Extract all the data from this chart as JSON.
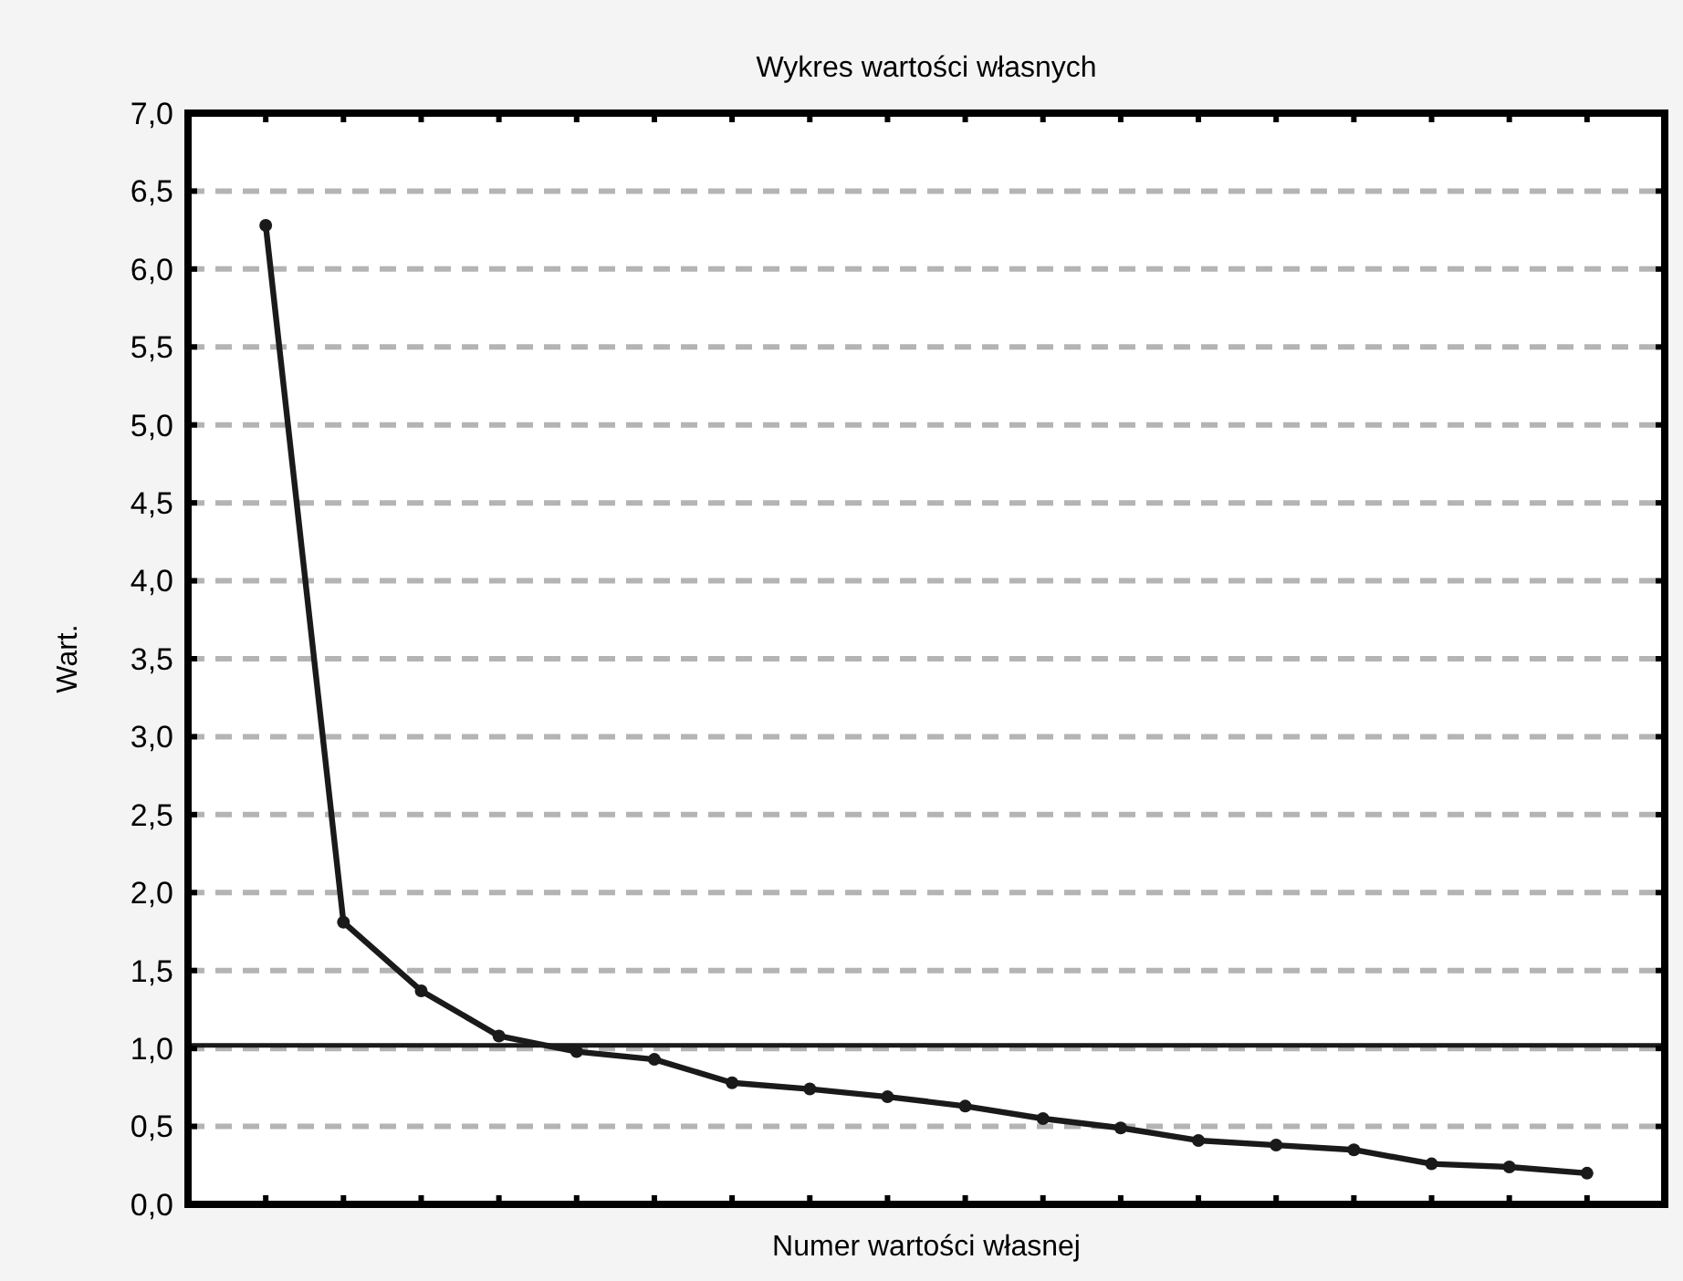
{
  "chart_data": {
    "type": "line",
    "title": "Wykres wartości własnych",
    "xlabel": "Numer wartości własnej",
    "ylabel": "Wart.",
    "categories": [
      null,
      null,
      null,
      null,
      null,
      null,
      null,
      null,
      null,
      null,
      null,
      null,
      null,
      null,
      null,
      null,
      null,
      null
    ],
    "series": [
      {
        "color": "#1a1a1a",
        "values": [
          6.28,
          1.81,
          1.37,
          1.08,
          0.98,
          0.93,
          0.78,
          0.74,
          0.69,
          0.63,
          0.55,
          0.49,
          0.41,
          0.38,
          0.35,
          0.26,
          0.24,
          0.2
        ]
      }
    ],
    "ylim": [
      0,
      7
    ],
    "yticks": [
      {
        "value": 0,
        "label": "0,0"
      },
      {
        "value": 0.5,
        "label": "0,5"
      },
      {
        "value": 1,
        "label": "1,0"
      },
      {
        "value": 1.5,
        "label": "1,5"
      },
      {
        "value": 2,
        "label": "2,0"
      },
      {
        "value": 2.5,
        "label": "2,5"
      },
      {
        "value": 3,
        "label": "3,0"
      },
      {
        "value": 3.5,
        "label": "3,5"
      },
      {
        "value": 4,
        "label": "4,0"
      },
      {
        "value": 4.5,
        "label": "4,5"
      },
      {
        "value": 5,
        "label": "5,0"
      },
      {
        "value": 5.5,
        "label": "5,5"
      },
      {
        "value": 6,
        "label": "6,0"
      },
      {
        "value": 6.5,
        "label": "6,5"
      },
      {
        "value": 7,
        "label": "7,0"
      }
    ],
    "ref_lines": [
      {
        "axis": "y",
        "value": 1.02,
        "color": "#1a1a1a",
        "line_style": "solid"
      }
    ],
    "grid": "y",
    "marker": "circle",
    "line_style": "solid"
  }
}
